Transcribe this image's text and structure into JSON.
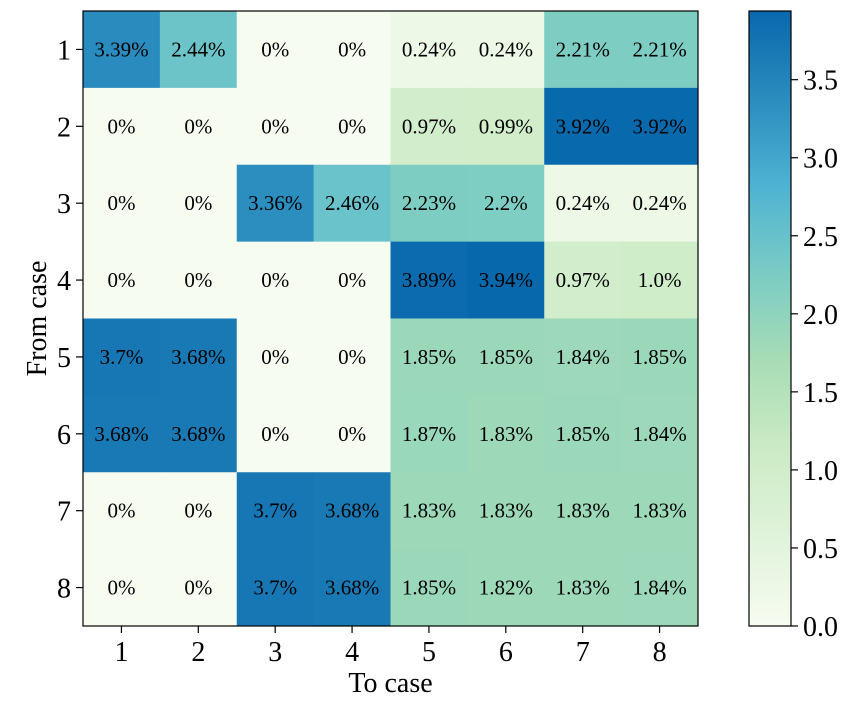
{
  "chart_data": {
    "type": "heatmap",
    "title": "",
    "xlabel": "To case",
    "ylabel": "From case",
    "x_categories": [
      "1",
      "2",
      "3",
      "4",
      "5",
      "6",
      "7",
      "8"
    ],
    "y_categories": [
      "1",
      "2",
      "3",
      "4",
      "5",
      "6",
      "7",
      "8"
    ],
    "values": [
      [
        3.39,
        2.44,
        0,
        0,
        0.24,
        0.24,
        2.21,
        2.21
      ],
      [
        0,
        0,
        0,
        0,
        0.97,
        0.99,
        3.92,
        3.92
      ],
      [
        0,
        0,
        3.36,
        2.46,
        2.23,
        2.2,
        0.24,
        0.24
      ],
      [
        0,
        0,
        0,
        0,
        3.89,
        3.94,
        0.97,
        1.0
      ],
      [
        3.7,
        3.68,
        0,
        0,
        1.85,
        1.85,
        1.84,
        1.85
      ],
      [
        3.68,
        3.68,
        0,
        0,
        1.87,
        1.83,
        1.85,
        1.84
      ],
      [
        0,
        0,
        3.7,
        3.68,
        1.83,
        1.83,
        1.83,
        1.83
      ],
      [
        0,
        0,
        3.7,
        3.68,
        1.85,
        1.82,
        1.83,
        1.84
      ]
    ],
    "cell_labels": [
      [
        "3.39%",
        "2.44%",
        "0%",
        "0%",
        "0.24%",
        "0.24%",
        "2.21%",
        "2.21%"
      ],
      [
        "0%",
        "0%",
        "0%",
        "0%",
        "0.97%",
        "0.99%",
        "3.92%",
        "3.92%"
      ],
      [
        "0%",
        "0%",
        "3.36%",
        "2.46%",
        "2.23%",
        "2.2%",
        "0.24%",
        "0.24%"
      ],
      [
        "0%",
        "0%",
        "0%",
        "0%",
        "3.89%",
        "3.94%",
        "0.97%",
        "1.0%"
      ],
      [
        "3.7%",
        "3.68%",
        "0%",
        "0%",
        "1.85%",
        "1.85%",
        "1.84%",
        "1.85%"
      ],
      [
        "3.68%",
        "3.68%",
        "0%",
        "0%",
        "1.87%",
        "1.83%",
        "1.85%",
        "1.84%"
      ],
      [
        "0%",
        "0%",
        "3.7%",
        "3.68%",
        "1.83%",
        "1.83%",
        "1.83%",
        "1.83%"
      ],
      [
        "0%",
        "0%",
        "3.7%",
        "3.68%",
        "1.85%",
        "1.82%",
        "1.83%",
        "1.84%"
      ]
    ],
    "colorbar": {
      "range": [
        0,
        3.94
      ],
      "ticks": [
        0.0,
        0.5,
        1.0,
        1.5,
        2.0,
        2.5,
        3.0,
        3.5
      ],
      "tick_labels": [
        "0.0",
        "0.5",
        "1.0",
        "1.5",
        "2.0",
        "2.5",
        "3.0",
        "3.5"
      ],
      "colormap_stops": [
        "#f7fcf0",
        "#e0f3db",
        "#ccebc5",
        "#a8ddb5",
        "#7bccc4",
        "#4eb3d3",
        "#2b8cbe",
        "#0868ac"
      ]
    },
    "grid": false,
    "legend": "colorbar-right"
  }
}
